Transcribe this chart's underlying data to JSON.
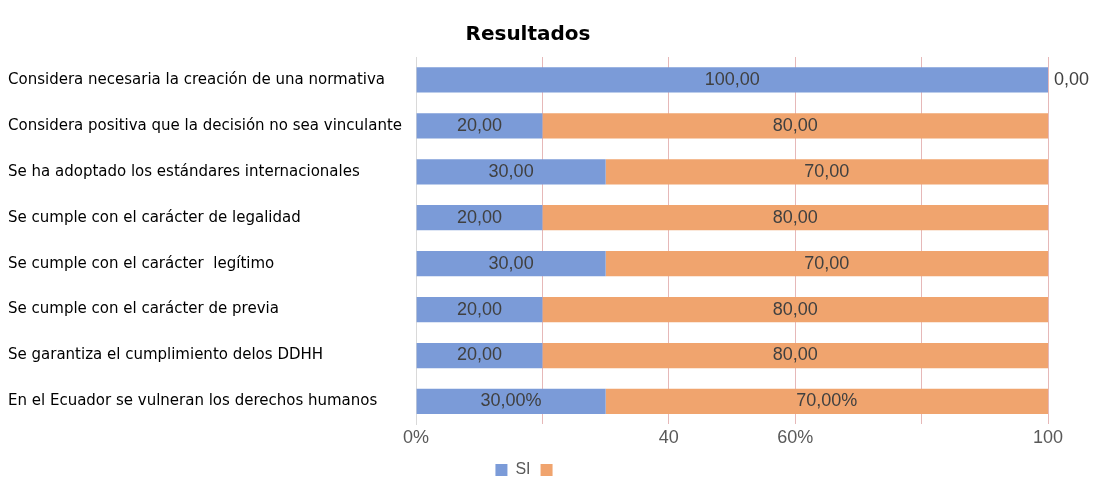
{
  "chart_data": {
    "type": "bar",
    "orientation": "horizontal",
    "stacked": true,
    "title": "Resultados",
    "categories": [
      "Considera necesaria la creación de una normativa",
      "Considera positiva que la decisión no sea vinculante",
      "Se ha adoptado los estándares internacionales",
      "Se cumple con el carácter de legalidad",
      "Se cumple con el carácter  legítimo",
      "Se cumple con el carácter de previa",
      "Se garantiza el cumplimiento delos DDHH",
      "En el Ecuador se vulneran los derechos humanos"
    ],
    "series": [
      {
        "name": "SI",
        "color": "#7b9bd8",
        "values": [
          100,
          20,
          30,
          20,
          30,
          20,
          20,
          30
        ],
        "value_labels": [
          "100,00",
          "20,00",
          "30,00",
          "20,00",
          "30,00",
          "20,00",
          "20,00",
          "30,00%"
        ]
      },
      {
        "color": "#f0a46e",
        "values": [
          0,
          80,
          70,
          80,
          70,
          80,
          80,
          70
        ],
        "value_labels": [
          "0,00",
          "80,00",
          "70,00",
          "80,00",
          "70,00",
          "80,00",
          "80,00",
          "70,00%"
        ]
      }
    ],
    "xlim": [
      0,
      100
    ],
    "xticks": [
      {
        "value": 0,
        "label": "0%"
      },
      {
        "value": 20,
        "label": null
      },
      {
        "value": 40,
        "label": "40"
      },
      {
        "value": 60,
        "label": "60%"
      },
      {
        "value": 80,
        "label": null
      },
      {
        "value": 100,
        "label": "100"
      }
    ],
    "grid": "x",
    "legend": "bottom"
  }
}
